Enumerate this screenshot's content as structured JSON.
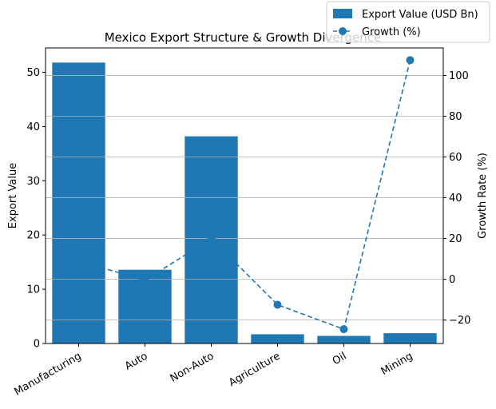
{
  "chart_data": {
    "type": "bar",
    "title": "Mexico Export Structure & Growth Divergence",
    "categories": [
      "Manufacturing",
      "Auto",
      "Non-Auto",
      "Agriculture",
      "Oil",
      "Mining"
    ],
    "series": [
      {
        "name": "Export Value (USD Bn)",
        "type": "bar",
        "axis": "left",
        "color": "#1f77b4",
        "values": [
          51.8,
          13.6,
          38.2,
          1.7,
          1.4,
          1.9
        ]
      },
      {
        "name": "Growth (%)",
        "type": "line",
        "axis": "right",
        "color": "#1f77b4",
        "style": "dashed",
        "marker": "circle",
        "values": [
          9.0,
          -0.5,
          20.0,
          -12.5,
          -24.5,
          107.5
        ]
      }
    ],
    "ylabel": "Export Value",
    "y2label": "Growth Rate (%)",
    "ylim": [
      0,
      54.5
    ],
    "y2lim": [
      -31.5,
      113.5
    ],
    "yticks": [
      0,
      10,
      20,
      30,
      40,
      50
    ],
    "y2ticks": [
      -20,
      0,
      20,
      40,
      60,
      80,
      100
    ],
    "grid": "horizontal, right axis",
    "legend_position": "top-right"
  }
}
